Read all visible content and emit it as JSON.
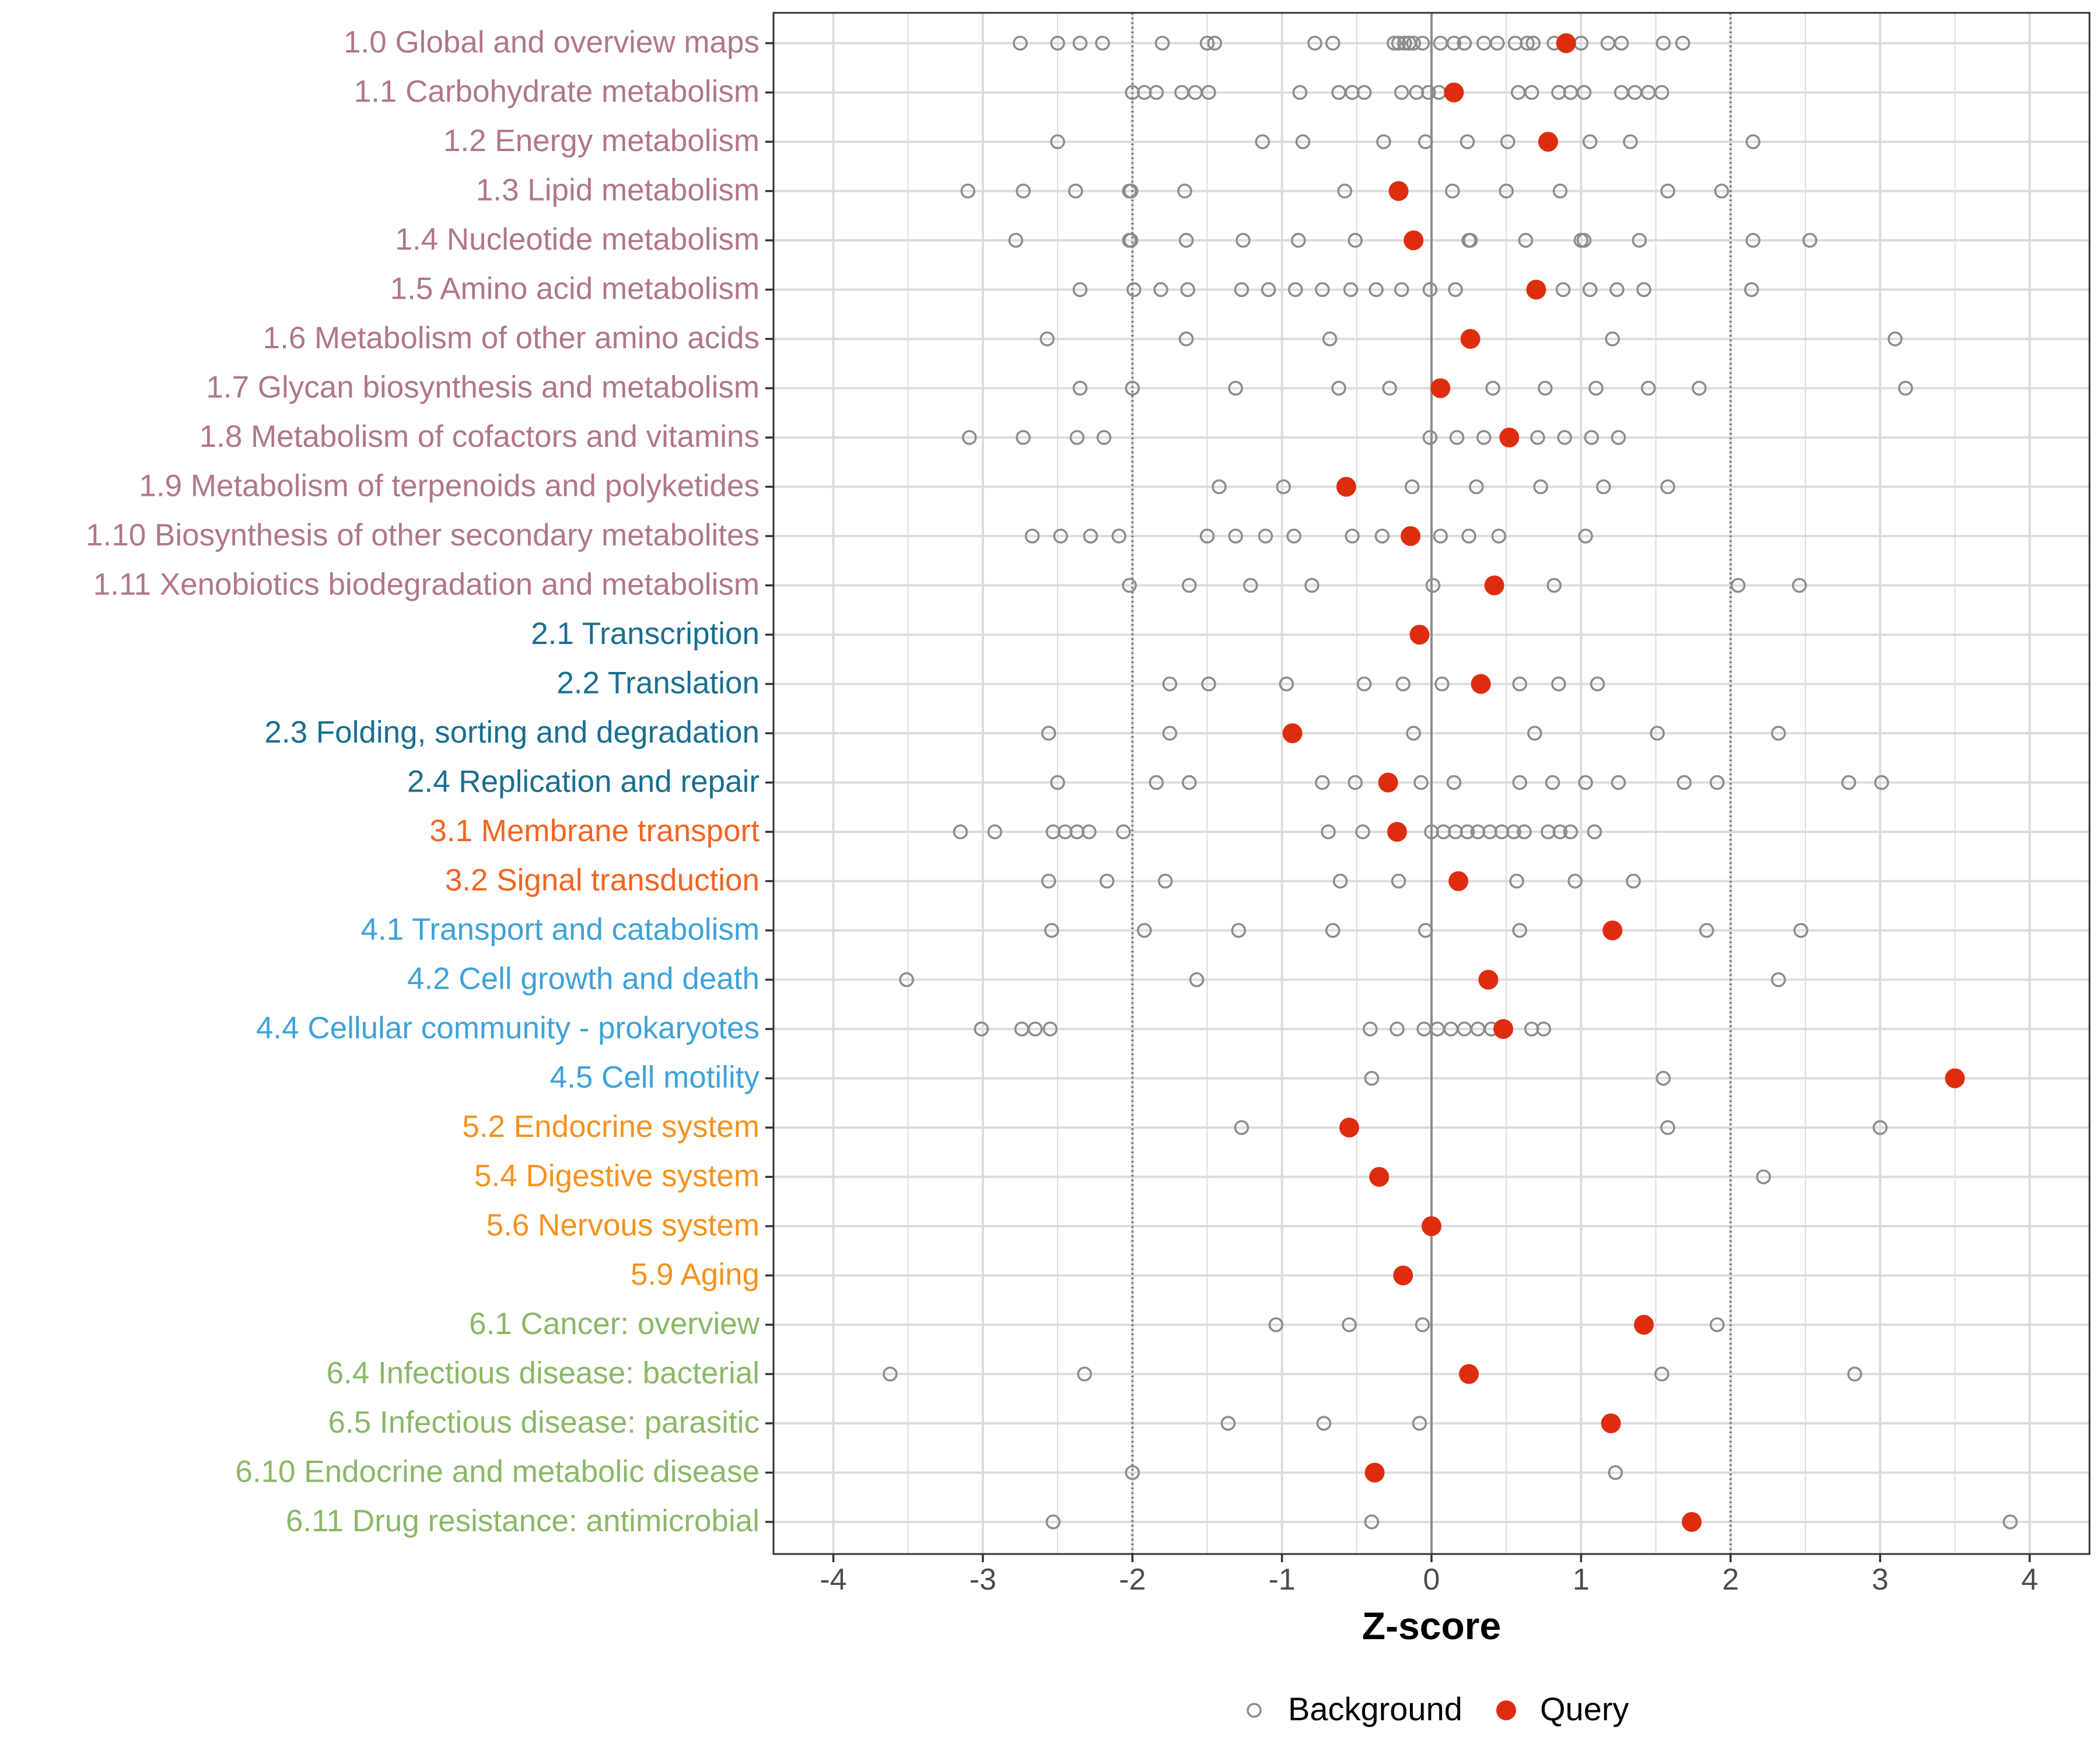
{
  "chart_data": {
    "type": "scatter",
    "xlabel": "Z-score",
    "xlim": [
      -4.4,
      4.4
    ],
    "xticks": [
      -4,
      -3,
      -2,
      -1,
      0,
      1,
      2,
      3,
      4
    ],
    "xtick_labels": [
      "-4",
      "-3",
      "-2",
      "-1",
      "0",
      "1",
      "2",
      "3",
      "4"
    ],
    "reference_lines": {
      "solid": [
        0
      ],
      "dotted": [
        -2,
        2
      ]
    },
    "grid": true,
    "legend": {
      "position": "bottom",
      "entries": [
        {
          "name": "Background",
          "style": "open-circle",
          "color": "#8c8c8c"
        },
        {
          "name": "Query",
          "style": "filled-circle",
          "color": "#de2d0e"
        }
      ]
    },
    "group_colors": {
      "1": "#b07787",
      "2": "#1a6e8f",
      "3": "#f26522",
      "4": "#3ea2d9",
      "5": "#f5921e",
      "6": "#8ab866"
    },
    "categories": [
      {
        "label": "1.0 Global and overview maps",
        "group": "1",
        "query": 0.9,
        "background": [
          -2.75,
          -2.5,
          -2.35,
          -2.2,
          -1.8,
          -1.5,
          -1.45,
          -0.78,
          -0.66,
          -0.25,
          -0.22,
          -0.18,
          -0.15,
          -0.12,
          -0.06,
          0.06,
          0.15,
          0.22,
          0.35,
          0.44,
          0.56,
          0.64,
          0.68,
          0.82,
          1.0,
          1.18,
          1.27,
          1.55,
          1.68
        ]
      },
      {
        "label": "1.1 Carbohydrate metabolism",
        "group": "1",
        "query": 0.15,
        "background": [
          -2.0,
          -1.92,
          -1.84,
          -1.67,
          -1.58,
          -1.49,
          -0.88,
          -0.62,
          -0.53,
          -0.45,
          -0.2,
          -0.1,
          -0.02,
          0.05,
          0.58,
          0.67,
          0.85,
          0.93,
          1.02,
          1.27,
          1.36,
          1.45,
          1.54
        ]
      },
      {
        "label": "1.2 Energy metabolism",
        "group": "1",
        "query": 0.78,
        "background": [
          -2.5,
          -1.13,
          -0.86,
          -0.32,
          -0.04,
          0.24,
          0.51,
          1.06,
          1.33,
          2.15
        ]
      },
      {
        "label": "1.3 Lipid metabolism",
        "group": "1",
        "query": -0.22,
        "background": [
          -3.1,
          -2.73,
          -2.38,
          -2.01,
          -2.02,
          -1.65,
          -0.58,
          0.14,
          0.5,
          0.86,
          1.58,
          1.94
        ]
      },
      {
        "label": "1.4 Nucleotide metabolism",
        "group": "1",
        "query": -0.12,
        "background": [
          -2.78,
          -2.02,
          -2.01,
          -1.64,
          -1.26,
          -0.89,
          -0.51,
          0.25,
          0.26,
          0.63,
          1.0,
          1.02,
          1.39,
          2.15,
          2.53
        ]
      },
      {
        "label": "1.5 Amino acid metabolism",
        "group": "1",
        "query": 0.7,
        "background": [
          -2.35,
          -1.99,
          -1.81,
          -1.63,
          -1.27,
          -1.09,
          -0.91,
          -0.73,
          -0.54,
          -0.37,
          -0.2,
          -0.01,
          0.16,
          0.88,
          1.06,
          1.24,
          1.42,
          2.14
        ]
      },
      {
        "label": "1.6 Metabolism of other amino acids",
        "group": "1",
        "query": 0.26,
        "background": [
          -2.57,
          -1.64,
          -0.68,
          1.21,
          3.1
        ]
      },
      {
        "label": "1.7 Glycan biosynthesis and metabolism",
        "group": "1",
        "query": 0.06,
        "background": [
          -2.35,
          -2.0,
          -1.31,
          -0.62,
          -0.28,
          0.41,
          0.76,
          1.1,
          1.45,
          1.79,
          3.17
        ]
      },
      {
        "label": "1.8 Metabolism of cofactors and vitamins",
        "group": "1",
        "query": 0.52,
        "background": [
          -3.09,
          -2.73,
          -2.37,
          -2.19,
          -0.01,
          0.17,
          0.35,
          0.71,
          0.89,
          1.07,
          1.25
        ]
      },
      {
        "label": "1.9 Metabolism of terpenoids and polyketides",
        "group": "1",
        "query": -0.57,
        "background": [
          -1.42,
          -0.99,
          -0.13,
          0.3,
          0.73,
          1.15,
          1.58
        ]
      },
      {
        "label": "1.10 Biosynthesis of other secondary metabolites",
        "group": "1",
        "query": -0.14,
        "background": [
          -2.67,
          -2.48,
          -2.28,
          -2.09,
          -1.5,
          -1.31,
          -1.11,
          -0.92,
          -0.53,
          -0.33,
          0.06,
          0.25,
          0.45,
          1.03
        ]
      },
      {
        "label": "1.11 Xenobiotics biodegradation and metabolism",
        "group": "1",
        "query": 0.42,
        "background": [
          -2.02,
          -1.62,
          -1.21,
          -0.8,
          0.01,
          0.82,
          2.05,
          2.46
        ]
      },
      {
        "label": "2.1 Transcription",
        "group": "2",
        "query": -0.08,
        "background": []
      },
      {
        "label": "2.2 Translation",
        "group": "2",
        "query": 0.33,
        "background": [
          -1.75,
          -1.49,
          -0.97,
          -0.45,
          -0.19,
          0.07,
          0.59,
          0.85,
          1.11
        ]
      },
      {
        "label": "2.3 Folding, sorting and degradation",
        "group": "2",
        "query": -0.93,
        "background": [
          -2.56,
          -1.75,
          -0.12,
          0.69,
          1.51,
          2.32
        ]
      },
      {
        "label": "2.4 Replication and repair",
        "group": "2",
        "query": -0.29,
        "background": [
          -2.5,
          -1.84,
          -1.62,
          -0.73,
          -0.51,
          -0.07,
          0.15,
          0.59,
          0.81,
          1.03,
          1.25,
          1.69,
          1.91,
          2.79,
          3.01
        ]
      },
      {
        "label": "3.1 Membrane transport",
        "group": "3",
        "query": -0.23,
        "background": [
          -3.15,
          -2.92,
          -2.53,
          -2.45,
          -2.37,
          -2.29,
          -2.06,
          -0.69,
          -0.46,
          0.0,
          0.08,
          0.16,
          0.24,
          0.31,
          0.39,
          0.47,
          0.55,
          0.62,
          0.78,
          0.86,
          0.93,
          1.09
        ]
      },
      {
        "label": "3.2 Signal transduction",
        "group": "3",
        "query": 0.18,
        "background": [
          -2.56,
          -2.17,
          -1.78,
          -0.61,
          -0.22,
          0.57,
          0.96,
          1.35
        ]
      },
      {
        "label": "4.1 Transport and catabolism",
        "group": "4",
        "query": 1.21,
        "background": [
          -2.54,
          -1.92,
          -1.29,
          -0.66,
          -0.04,
          0.59,
          1.84,
          2.47
        ]
      },
      {
        "label": "4.2 Cell growth and death",
        "group": "4",
        "query": 0.38,
        "background": [
          -3.51,
          -1.57,
          2.32
        ]
      },
      {
        "label": "4.4 Cellular community - prokaryotes",
        "group": "4",
        "query": 0.48,
        "background": [
          -3.01,
          -2.74,
          -2.65,
          -2.55,
          -0.41,
          -0.23,
          -0.05,
          0.04,
          0.13,
          0.22,
          0.31,
          0.4,
          0.67,
          0.75
        ]
      },
      {
        "label": "4.5 Cell motility",
        "group": "4",
        "query": 3.5,
        "background": [
          -0.4,
          1.55
        ]
      },
      {
        "label": "5.2 Endocrine system",
        "group": "5",
        "query": -0.55,
        "background": [
          -1.27,
          1.58,
          3.0
        ]
      },
      {
        "label": "5.4 Digestive system",
        "group": "5",
        "query": -0.35,
        "background": [
          2.22
        ]
      },
      {
        "label": "5.6 Nervous system",
        "group": "5",
        "query": 0.0,
        "background": []
      },
      {
        "label": "5.9 Aging",
        "group": "5",
        "query": -0.19,
        "background": []
      },
      {
        "label": "6.1 Cancer: overview",
        "group": "6",
        "query": 1.42,
        "background": [
          -1.04,
          -0.55,
          -0.06,
          1.91
        ]
      },
      {
        "label": "6.4 Infectious disease: bacterial",
        "group": "6",
        "query": 0.25,
        "background": [
          -3.62,
          -2.32,
          1.54,
          2.83
        ]
      },
      {
        "label": "6.5 Infectious disease: parasitic",
        "group": "6",
        "query": 1.2,
        "background": [
          -1.36,
          -0.72,
          -0.08
        ]
      },
      {
        "label": "6.10 Endocrine and metabolic disease",
        "group": "6",
        "query": -0.38,
        "background": [
          -2.0,
          1.23
        ]
      },
      {
        "label": "6.11 Drug resistance: antimicrobial",
        "group": "6",
        "query": 1.74,
        "background": [
          -2.53,
          -0.4,
          3.87
        ]
      }
    ]
  }
}
